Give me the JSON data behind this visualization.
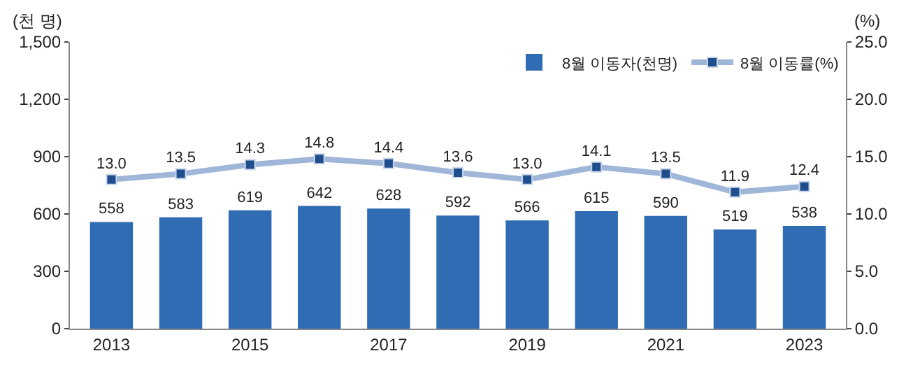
{
  "chart_data": {
    "type": "bar",
    "ylabel": "(천 명)",
    "y2label": "(%)",
    "x": [
      2013,
      2014,
      2015,
      2016,
      2017,
      2018,
      2019,
      2020,
      2021,
      2022,
      2023
    ],
    "xlim": [
      2012.4,
      2023.6
    ],
    "xticks": [
      2013,
      2015,
      2017,
      2019,
      2021,
      2023
    ],
    "ylim": [
      0,
      1500
    ],
    "yticks": [
      0,
      300,
      600,
      900,
      {
        "value": 1200,
        "label": "1,200"
      },
      {
        "value": 1500,
        "label": "1,500"
      }
    ],
    "y2lim": [
      0,
      25
    ],
    "y2ticks": [
      {
        "value": 0,
        "label": "0.0"
      },
      {
        "value": 5,
        "label": "5.0"
      },
      {
        "value": 10,
        "label": "10.0"
      },
      {
        "value": 15,
        "label": "15.0"
      },
      {
        "value": 20,
        "label": "20.0"
      },
      {
        "value": 25,
        "label": "25.0"
      }
    ],
    "series": [
      {
        "name": "8월 이동자(천명)",
        "color": "#2f6cb3",
        "values": [
          558,
          583,
          619,
          642,
          628,
          592,
          566,
          615,
          590,
          519,
          538
        ],
        "value_labels": [
          "558",
          "583",
          "619",
          "642",
          "628",
          "592",
          "566",
          "615",
          "590",
          "519",
          "538"
        ]
      },
      {
        "name": "8월 이동률(%)",
        "type": "line",
        "axis": "y2",
        "color": "#9fb6d8",
        "marker": "square",
        "values": [
          13.0,
          13.5,
          14.3,
          14.8,
          14.4,
          13.6,
          13.0,
          14.1,
          13.5,
          11.9,
          12.4
        ],
        "value_labels": [
          "13.0",
          "13.5",
          "14.3",
          "14.8",
          "14.4",
          "13.6",
          "13.0",
          "14.1",
          "13.5",
          "11.9",
          "12.4"
        ]
      }
    ],
    "grid": false,
    "legend": "top right"
  }
}
